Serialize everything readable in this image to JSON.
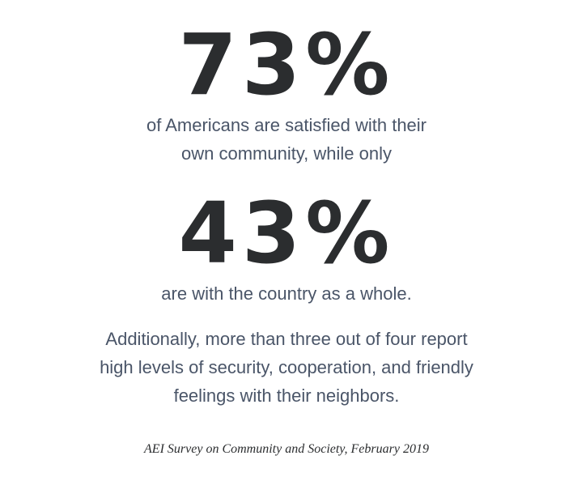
{
  "stat_1": {
    "value": "73%",
    "caption_line_1": "of Americans are satisfied with their",
    "caption_line_2": "own community, while only"
  },
  "stat_2": {
    "value": "43%",
    "caption_line_1": "are with the country as a whole."
  },
  "additional": {
    "line_1": "Additionally, more than three out of four report",
    "line_2": "high levels of security, cooperation, and friendly",
    "line_3": "feelings with their neighbors."
  },
  "source": "AEI Survey on Community and Society, February 2019"
}
